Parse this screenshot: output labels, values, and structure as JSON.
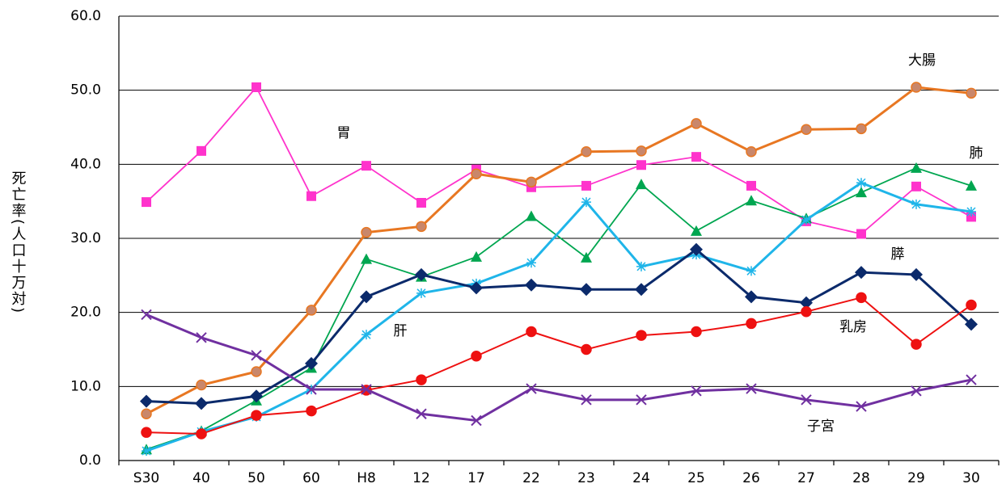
{
  "chart_data": {
    "type": "line",
    "y_label": "死亡率(人口十万対)",
    "categories": [
      "S30",
      "40",
      "50",
      "60",
      "H8",
      "12",
      "17",
      "22",
      "23",
      "24",
      "25",
      "26",
      "27",
      "28",
      "29",
      "30"
    ],
    "ylim": [
      0,
      60
    ],
    "yticks": [
      {
        "value": 0,
        "label": "0.0"
      },
      {
        "value": 10,
        "label": "10.0"
      },
      {
        "value": 20,
        "label": "20.0"
      },
      {
        "value": 30,
        "label": "30.0"
      },
      {
        "value": 40,
        "label": "40.0"
      },
      {
        "value": 50,
        "label": "50.0"
      },
      {
        "value": 60,
        "label": "60.0"
      }
    ],
    "grid": true,
    "series": [
      {
        "name": "胃",
        "color": "#ff33cc",
        "marker": "square",
        "values": [
          34.9,
          41.8,
          50.4,
          35.7,
          39.8,
          34.8,
          39.3,
          36.9,
          37.1,
          39.9,
          41.0,
          37.1,
          32.3,
          30.6,
          37.0,
          32.9
        ]
      },
      {
        "name": "大腸",
        "color": "#e87722",
        "marker": "circle",
        "values": [
          6.3,
          10.2,
          12.0,
          20.3,
          30.8,
          31.6,
          38.7,
          37.6,
          41.7,
          41.8,
          45.5,
          41.7,
          44.7,
          44.8,
          50.4,
          49.6
        ]
      },
      {
        "name": "肺",
        "color": "#00a650",
        "marker": "triangle",
        "values": [
          1.5,
          4.0,
          8.1,
          12.5,
          27.2,
          24.8,
          27.5,
          33.0,
          27.4,
          37.3,
          31.0,
          35.1,
          32.7,
          36.2,
          39.5,
          37.1
        ]
      },
      {
        "name": "膵",
        "color": "#1fb5e9",
        "marker": "asterisk",
        "values": [
          1.3,
          3.9,
          5.9,
          9.6,
          17.0,
          22.6,
          23.9,
          26.7,
          34.9,
          26.2,
          27.8,
          25.6,
          32.5,
          37.5,
          34.6,
          33.6
        ]
      },
      {
        "name": "肝",
        "color": "#0b2a6b",
        "marker": "diamond",
        "values": [
          8.0,
          7.7,
          8.7,
          13.1,
          22.1,
          25.1,
          23.3,
          23.7,
          23.1,
          23.1,
          28.5,
          22.1,
          21.3,
          25.4,
          25.1,
          18.4
        ]
      },
      {
        "name": "乳房",
        "color": "#ee1111",
        "marker": "circle",
        "values": [
          3.8,
          3.6,
          6.1,
          6.7,
          9.5,
          10.9,
          14.1,
          17.4,
          15.0,
          16.9,
          17.4,
          18.5,
          20.1,
          22.0,
          15.7,
          21.0
        ]
      },
      {
        "name": "子宮",
        "color": "#7030a0",
        "marker": "x",
        "values": [
          19.7,
          16.6,
          14.2,
          9.6,
          9.6,
          6.3,
          5.4,
          9.7,
          8.2,
          8.2,
          9.4,
          9.7,
          8.2,
          7.3,
          9.4,
          10.9
        ]
      }
    ]
  }
}
